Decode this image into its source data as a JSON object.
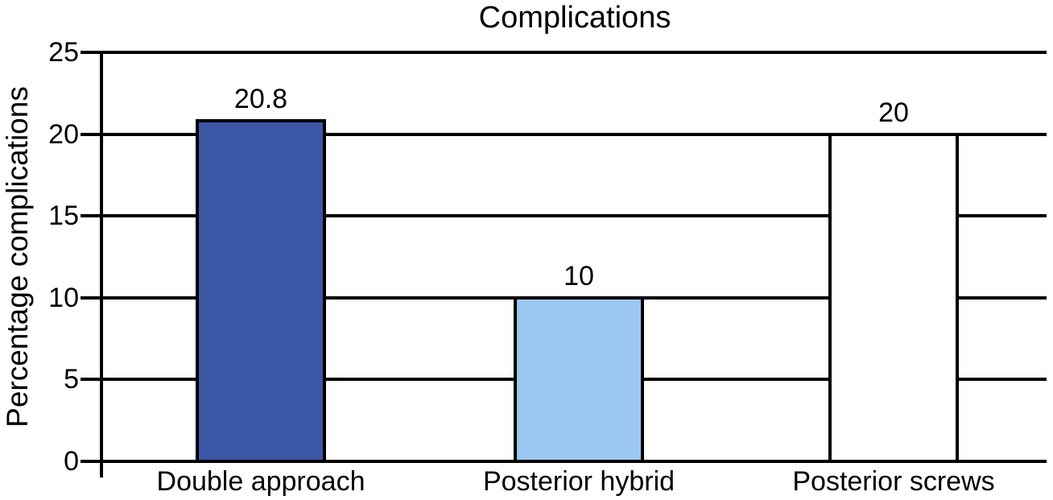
{
  "chart_data": {
    "type": "bar",
    "title": "Complications",
    "xlabel": "",
    "ylabel": "Percentage complications",
    "categories": [
      "Double approach",
      "Posterior hybrid",
      "Posterior screws"
    ],
    "values": [
      20.8,
      10,
      20
    ],
    "value_labels": [
      "20.8",
      "10",
      "20"
    ],
    "bar_colors": [
      "#3b57a5",
      "#9bc7f0",
      "#ffffff"
    ],
    "bar_border_color": "#000000",
    "ylim": [
      0,
      25
    ],
    "yticks": [
      0,
      5,
      10,
      15,
      20,
      25
    ],
    "ytick_labels": [
      "0",
      "5",
      "10",
      "15",
      "20",
      "25"
    ],
    "grid": "horizontal",
    "legend": "none",
    "axis_color": "#000000",
    "background_color": "#ffffff"
  }
}
